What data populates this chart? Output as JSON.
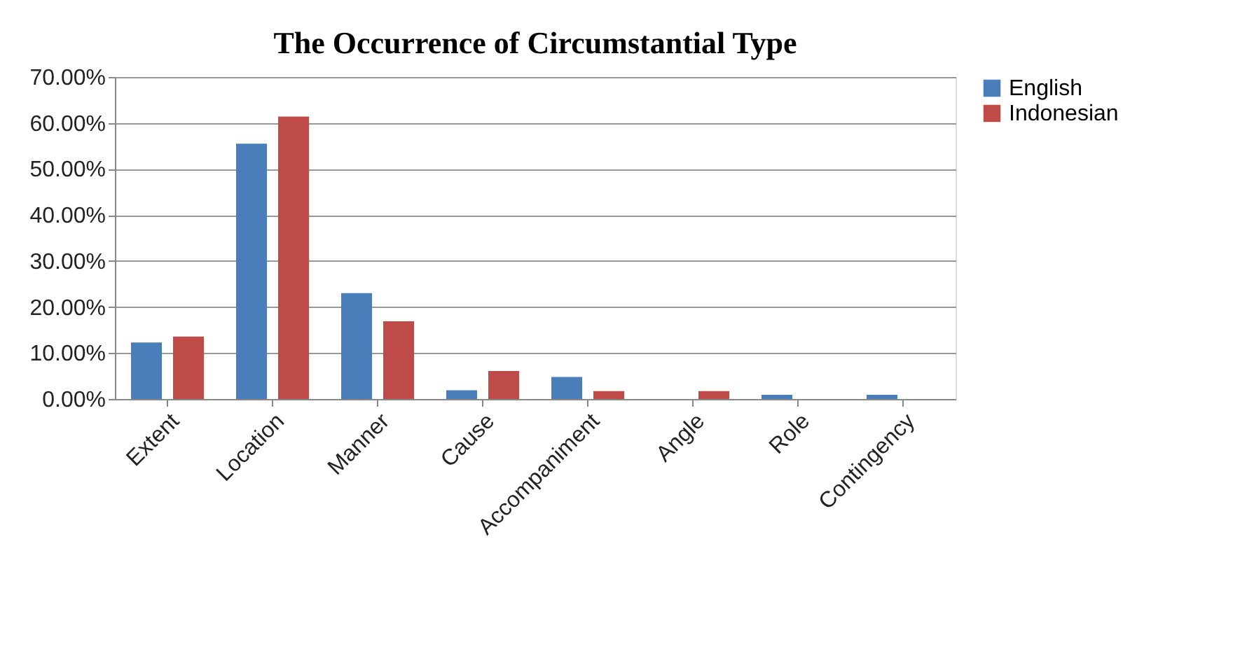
{
  "chart_data": {
    "type": "bar",
    "title": "The Occurrence of Circumstantial Type",
    "categories": [
      "Extent",
      "Location",
      "Manner",
      "Cause",
      "Accompaniment",
      "Angle",
      "Role",
      "Contingency"
    ],
    "series": [
      {
        "name": "English",
        "color": "#4a7ebb",
        "values": [
          12.3,
          55.5,
          23.0,
          1.9,
          4.8,
          0,
          0.9,
          0.9
        ]
      },
      {
        "name": "Indonesian",
        "color": "#be4b48",
        "values": [
          13.6,
          61.4,
          16.9,
          6.1,
          1.7,
          1.7,
          0,
          0
        ]
      }
    ],
    "ylim": [
      0,
      70
    ],
    "yticks": [
      {
        "value": 0,
        "label": "0.00%"
      },
      {
        "value": 10,
        "label": "10.00%"
      },
      {
        "value": 20,
        "label": "20.00%"
      },
      {
        "value": 30,
        "label": "30.00%"
      },
      {
        "value": 40,
        "label": "40.00%"
      },
      {
        "value": 50,
        "label": "50.00%"
      },
      {
        "value": 60,
        "label": "60.00%"
      },
      {
        "value": 70,
        "label": "70.00%"
      }
    ],
    "grid": "y",
    "legend": "right"
  }
}
